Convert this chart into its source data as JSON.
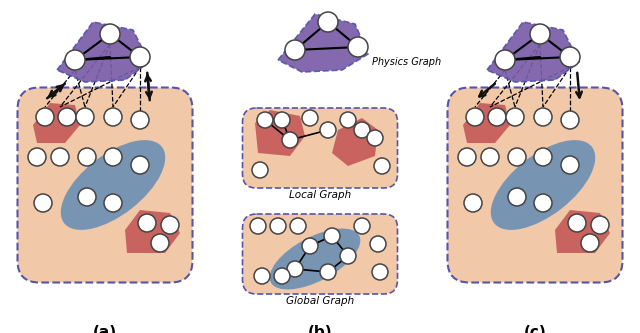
{
  "bg_color": "#ffffff",
  "peach_color": "#f2c9a8",
  "blue_color": "#6b8fb5",
  "red_color": "#c45555",
  "purple_color": "#7a5ca8",
  "node_fc": "#ffffff",
  "node_ec": "#444444",
  "dash_color": "#5555aa",
  "arrow_color": "#111111",
  "panel_labels": [
    "(a)",
    "(b)",
    "(c)"
  ],
  "physics_label": "Physics Graph",
  "local_label": "Local Graph",
  "global_label": "Global Graph"
}
